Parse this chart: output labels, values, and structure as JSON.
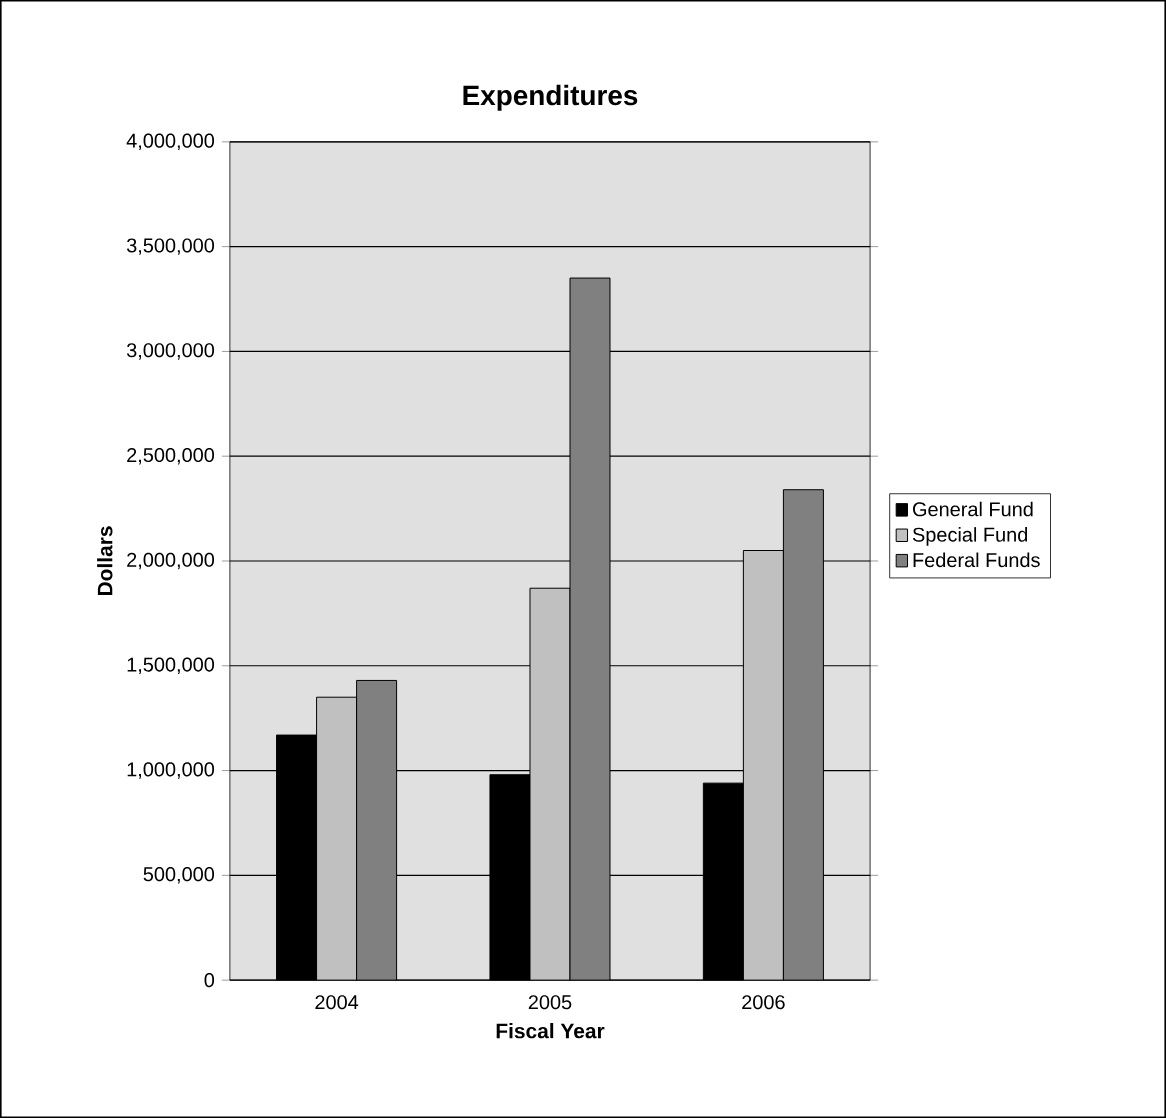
{
  "chart_data": {
    "type": "bar",
    "title": "Expenditures",
    "xlabel": "Fiscal Year",
    "ylabel": "Dollars",
    "categories": [
      "2004",
      "2005",
      "2006"
    ],
    "series": [
      {
        "name": "General Fund",
        "color": "#000000",
        "values": [
          1170000,
          980000,
          940000
        ]
      },
      {
        "name": "Special Fund",
        "color": "#c0c0c0",
        "values": [
          1350000,
          1870000,
          2050000
        ]
      },
      {
        "name": "Federal Funds",
        "color": "#808080",
        "values": [
          1430000,
          3350000,
          2340000
        ]
      }
    ],
    "ylim": [
      0,
      4000000
    ],
    "yticks": [
      {
        "value": 0,
        "label": "0"
      },
      {
        "value": 500000,
        "label": "500,000"
      },
      {
        "value": 1000000,
        "label": "1,000,000"
      },
      {
        "value": 1500000,
        "label": "1,500,000"
      },
      {
        "value": 2000000,
        "label": "2,000,000"
      },
      {
        "value": 2500000,
        "label": "2,500,000"
      },
      {
        "value": 3000000,
        "label": "3,000,000"
      },
      {
        "value": 3500000,
        "label": "3,500,000"
      },
      {
        "value": 4000000,
        "label": "4,000,000"
      }
    ],
    "grid": "y",
    "legend": "right"
  }
}
